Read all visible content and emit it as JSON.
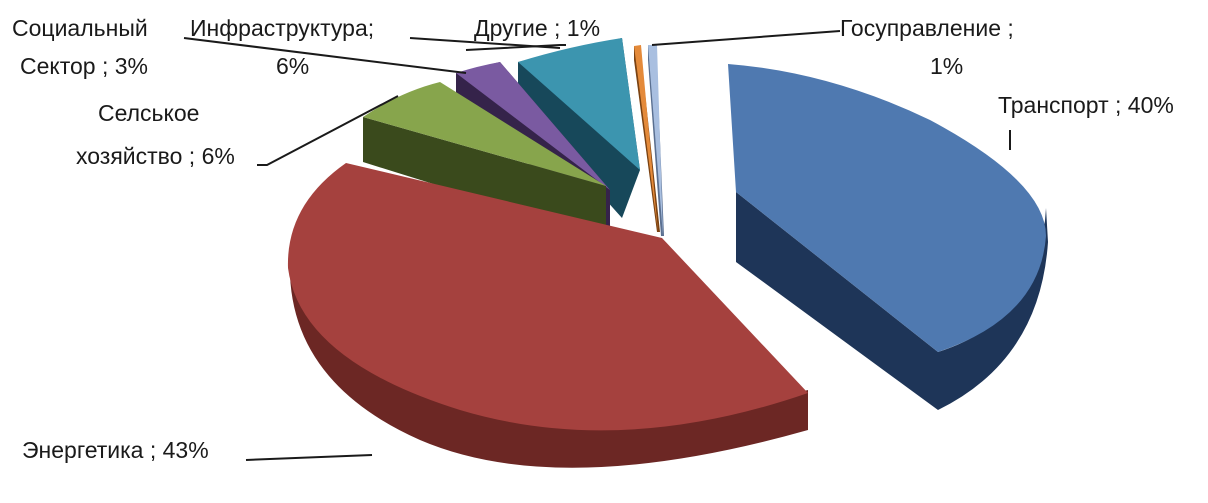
{
  "chart_data": {
    "type": "pie",
    "style": "3d-exploded",
    "title": "",
    "slices": [
      {
        "name": "Транспорт",
        "value": 40,
        "label": "Транспорт ; 40%",
        "color": "#4f79b0",
        "side": "#1e3558"
      },
      {
        "name": "Энергетика",
        "value": 43,
        "label": "Энергетика ; 43%",
        "color": "#a5413e",
        "side": "#5a211d"
      },
      {
        "name": "Селское хозяйство",
        "value": 6,
        "label_lines": [
          "Селськое",
          "хозяйство ; 6%"
        ],
        "color": "#87a54c",
        "side": "#3a4a1c"
      },
      {
        "name": "Социальный Сектор",
        "value": 3,
        "label_lines": [
          "Социальный",
          "Сектор ; 3%"
        ],
        "color": "#7a5aa1",
        "side": "#35234a"
      },
      {
        "name": "Инфраструктура",
        "value": 6,
        "label_lines": [
          "Инфраструктура;",
          "6%"
        ],
        "color": "#3c95af",
        "side": "#17485a"
      },
      {
        "name": "Другие",
        "value": 1,
        "label": "Другие ; 1%",
        "color": "#e48a3a",
        "side": "#7a4212"
      },
      {
        "name": "Госуправление",
        "value": 1,
        "label_lines": [
          "Госуправление ;",
          "1%"
        ],
        "color": "#a9bfe0",
        "side": "#5a6f90"
      }
    ]
  }
}
